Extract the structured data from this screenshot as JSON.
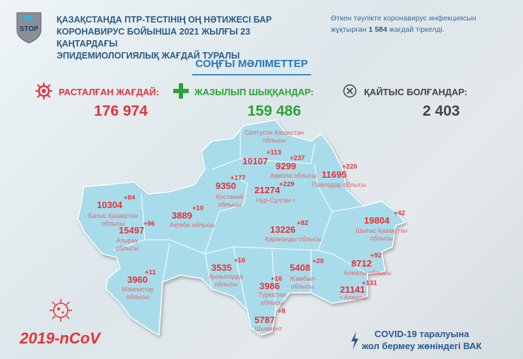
{
  "header": {
    "title_lines": [
      "ҚАЗАҚСТАНДА ПТР-ТЕСТІНІҢ ОҢ НӘТИЖЕСІ БАР",
      "КОРОНАВИРУС БОЙЫНША 2021 ЖЫЛҒЫ 23 ҚАҢТАРДАҒЫ",
      "ЭПИДЕМИОЛОГИЯЛЫҚ ЖАҒДАЙ ТУРАЛЫ"
    ],
    "logo_text": "STOP",
    "note_before": "Өткен тәулікте коронавирус инфекциясын жұқтырған",
    "note_number": "1 584",
    "note_after": "жағдай тіркелді."
  },
  "section_title": "СОҢҒЫ МӘЛІМЕТТЕР",
  "stats": [
    {
      "label": "РАСТАЛҒАН ЖАҒДАЙ:",
      "value": "176 974",
      "icon": "virus-icon",
      "color": "#e3323a"
    },
    {
      "label": "ЖАЗЫЛЫП ШЫҚҚАНДАР:",
      "value": "159 486",
      "icon": "plus-icon",
      "color": "#2ea236"
    },
    {
      "label": "ҚАЙТЫС БОЛҒАНДАР:",
      "value": "2 403",
      "icon": "x-circle-icon",
      "color": "#444444"
    }
  ],
  "regions": [
    {
      "name": "Солтүстік Қазақстан облысы",
      "total": "10107",
      "delta": "+113"
    },
    {
      "name": "Ақмола облысы",
      "total": "9299",
      "delta": "+237"
    },
    {
      "name": "Павлодар облысы",
      "total": "11695",
      "delta": "+220"
    },
    {
      "name": "Қостанай облысы",
      "total": "9350",
      "delta": "+177"
    },
    {
      "name": "Нұр-Сұлтан •",
      "total": "21274",
      "delta": "+229"
    },
    {
      "name": "Батыс Қазақстан облысы",
      "total": "10304",
      "delta": "+84"
    },
    {
      "name": "Ақтөбе облысы",
      "total": "3889",
      "delta": "+10"
    },
    {
      "name": "Атырау облысы",
      "total": "15497",
      "delta": "+96"
    },
    {
      "name": "Қарағанды облысы",
      "total": "13226",
      "delta": "+82"
    },
    {
      "name": "Шығыс Қазақстан облысы",
      "total": "19804",
      "delta": "+42"
    },
    {
      "name": "Маңғыстау облысы",
      "total": "3960",
      "delta": "+11"
    },
    {
      "name": "Қызылорда облысы",
      "total": "3535",
      "delta": "+16"
    },
    {
      "name": "Түркістан облысы",
      "total": "3986",
      "delta": "+16"
    },
    {
      "name": "Жамбыл облысы",
      "total": "5408",
      "delta": "+20"
    },
    {
      "name": "Алматы облысы",
      "total": "8712",
      "delta": "+92"
    },
    {
      "name": "• Алматы",
      "total": "21141",
      "delta": "+131"
    },
    {
      "name": "Шымкент",
      "total": "5787",
      "delta": "+8"
    }
  ],
  "footer": {
    "ncov": "2019-nCoV",
    "vak_lines": [
      "COVID-19 таралуына",
      "жол бермеу жөніндегі ВАК"
    ]
  },
  "colors": {
    "map": "#a9dcea",
    "accent_red": "#e3323a",
    "title_blue": "#2b5a8a"
  }
}
